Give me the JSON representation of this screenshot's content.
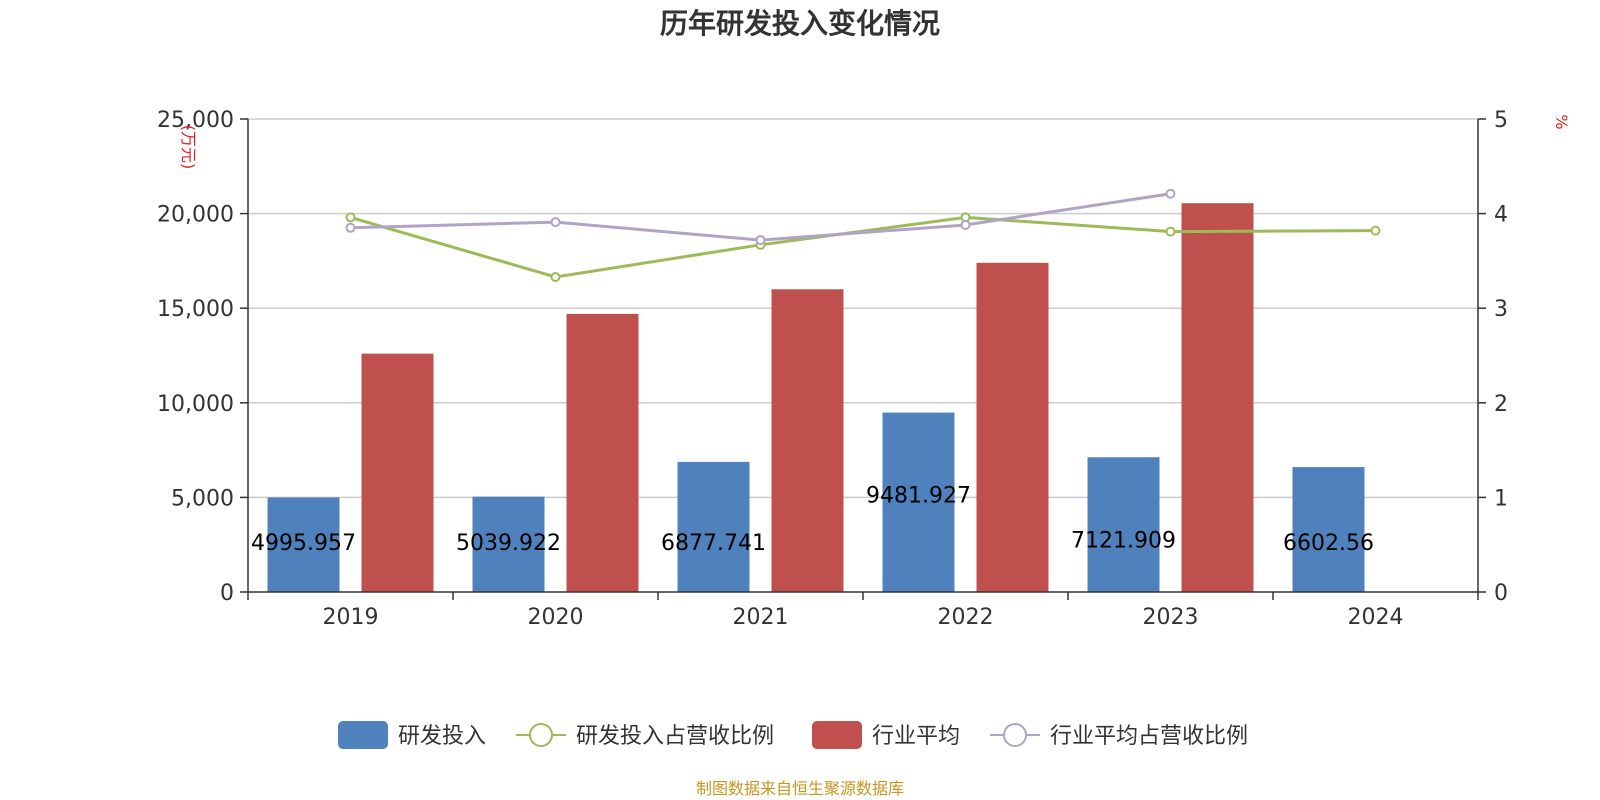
{
  "chart_data": {
    "type": "bar",
    "title": "历年研发投入变化情况",
    "categories": [
      "2019",
      "2020",
      "2021",
      "2022",
      "2023",
      "2024"
    ],
    "y_left": {
      "unit": "(万元)",
      "ylim": [
        0,
        25000
      ],
      "ticks": [
        "0",
        "5,000",
        "10,000",
        "15,000",
        "20,000",
        "25,000"
      ]
    },
    "y_right": {
      "unit": "%",
      "ylim": [
        0,
        5
      ],
      "ticks": [
        "0",
        "1",
        "2",
        "3",
        "4",
        "5"
      ]
    },
    "series": [
      {
        "name": "研发投入",
        "kind": "bar",
        "axis": "left",
        "color": "#4F81BD",
        "values": [
          4995.957,
          5039.922,
          6877.741,
          9481.927,
          7121.909,
          6602.56
        ],
        "labels": [
          "4995.957",
          "5039.922",
          "6877.741",
          "9481.927",
          "7121.909",
          "6602.56"
        ]
      },
      {
        "name": "研发投入占营收比例",
        "kind": "line",
        "axis": "right",
        "color": "#9BBB59",
        "values": [
          3.96,
          3.33,
          3.67,
          3.96,
          3.81,
          3.82
        ]
      },
      {
        "name": "行业平均",
        "kind": "bar",
        "axis": "left",
        "color": "#C0504D",
        "values": [
          12600,
          14700,
          16000,
          17400,
          20550,
          null
        ]
      },
      {
        "name": "行业平均占营收比例",
        "kind": "line",
        "axis": "right",
        "color": "#B3A2C7",
        "values": [
          3.85,
          3.91,
          3.72,
          3.88,
          4.21,
          null
        ]
      }
    ],
    "legend_position": "bottom",
    "grid": true
  },
  "source_text": "制图数据来自恒生聚源数据库",
  "colors": {
    "unit_text": "#E02020",
    "source_text": "#C8961E",
    "axis": "#333333",
    "grid": "#CCCCCC"
  }
}
